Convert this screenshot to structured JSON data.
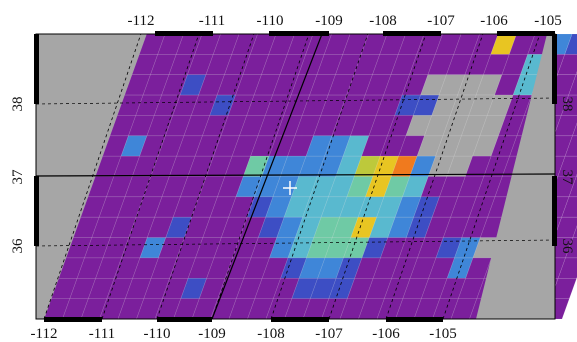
{
  "map": {
    "top_lon_labels": [
      "-112",
      "-111",
      "-110",
      "-109",
      "-108",
      "-107",
      "-106",
      "-105"
    ],
    "bottom_lon_labels": [
      "-112",
      "-111",
      "-110",
      "-109",
      "-108",
      "-107",
      "-106",
      "-105"
    ],
    "lat_labels": [
      "38",
      "37",
      "36"
    ],
    "lat_labels_right": [
      "38",
      "37",
      "36"
    ],
    "colors": {
      "background": "#a6a6a6",
      "level_0": "#7b1f9c",
      "level_1": "#3d4ec4",
      "level_2": "#3f86d8",
      "level_3": "#59b9cf",
      "level_4": "#6fcaa5",
      "level_5": "#bdc93b",
      "level_6": "#e8c522",
      "level_7": "#f07a1e",
      "frame": "#000000"
    },
    "marker": "white-cross"
  }
}
